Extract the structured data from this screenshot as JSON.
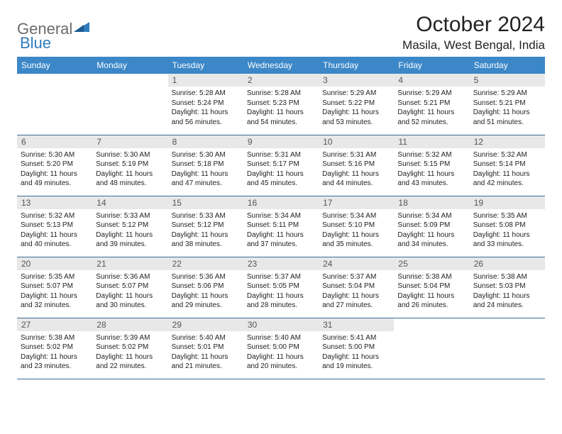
{
  "logo": {
    "part1": "General",
    "part2": "Blue"
  },
  "title": "October 2024",
  "location": "Masila, West Bengal, India",
  "colors": {
    "header_bg": "#3b87c8",
    "header_text": "#ffffff",
    "daynum_bg": "#e8e8e8",
    "border": "#3b6b95",
    "logo_gray": "#6b6b6b",
    "logo_blue": "#2f7bbf"
  },
  "day_headers": [
    "Sunday",
    "Monday",
    "Tuesday",
    "Wednesday",
    "Thursday",
    "Friday",
    "Saturday"
  ],
  "weeks": [
    [
      {
        "n": "",
        "sr": "",
        "ss": "",
        "dl": ""
      },
      {
        "n": "",
        "sr": "",
        "ss": "",
        "dl": ""
      },
      {
        "n": "1",
        "sr": "Sunrise: 5:28 AM",
        "ss": "Sunset: 5:24 PM",
        "dl": "Daylight: 11 hours and 56 minutes."
      },
      {
        "n": "2",
        "sr": "Sunrise: 5:28 AM",
        "ss": "Sunset: 5:23 PM",
        "dl": "Daylight: 11 hours and 54 minutes."
      },
      {
        "n": "3",
        "sr": "Sunrise: 5:29 AM",
        "ss": "Sunset: 5:22 PM",
        "dl": "Daylight: 11 hours and 53 minutes."
      },
      {
        "n": "4",
        "sr": "Sunrise: 5:29 AM",
        "ss": "Sunset: 5:21 PM",
        "dl": "Daylight: 11 hours and 52 minutes."
      },
      {
        "n": "5",
        "sr": "Sunrise: 5:29 AM",
        "ss": "Sunset: 5:21 PM",
        "dl": "Daylight: 11 hours and 51 minutes."
      }
    ],
    [
      {
        "n": "6",
        "sr": "Sunrise: 5:30 AM",
        "ss": "Sunset: 5:20 PM",
        "dl": "Daylight: 11 hours and 49 minutes."
      },
      {
        "n": "7",
        "sr": "Sunrise: 5:30 AM",
        "ss": "Sunset: 5:19 PM",
        "dl": "Daylight: 11 hours and 48 minutes."
      },
      {
        "n": "8",
        "sr": "Sunrise: 5:30 AM",
        "ss": "Sunset: 5:18 PM",
        "dl": "Daylight: 11 hours and 47 minutes."
      },
      {
        "n": "9",
        "sr": "Sunrise: 5:31 AM",
        "ss": "Sunset: 5:17 PM",
        "dl": "Daylight: 11 hours and 45 minutes."
      },
      {
        "n": "10",
        "sr": "Sunrise: 5:31 AM",
        "ss": "Sunset: 5:16 PM",
        "dl": "Daylight: 11 hours and 44 minutes."
      },
      {
        "n": "11",
        "sr": "Sunrise: 5:32 AM",
        "ss": "Sunset: 5:15 PM",
        "dl": "Daylight: 11 hours and 43 minutes."
      },
      {
        "n": "12",
        "sr": "Sunrise: 5:32 AM",
        "ss": "Sunset: 5:14 PM",
        "dl": "Daylight: 11 hours and 42 minutes."
      }
    ],
    [
      {
        "n": "13",
        "sr": "Sunrise: 5:32 AM",
        "ss": "Sunset: 5:13 PM",
        "dl": "Daylight: 11 hours and 40 minutes."
      },
      {
        "n": "14",
        "sr": "Sunrise: 5:33 AM",
        "ss": "Sunset: 5:12 PM",
        "dl": "Daylight: 11 hours and 39 minutes."
      },
      {
        "n": "15",
        "sr": "Sunrise: 5:33 AM",
        "ss": "Sunset: 5:12 PM",
        "dl": "Daylight: 11 hours and 38 minutes."
      },
      {
        "n": "16",
        "sr": "Sunrise: 5:34 AM",
        "ss": "Sunset: 5:11 PM",
        "dl": "Daylight: 11 hours and 37 minutes."
      },
      {
        "n": "17",
        "sr": "Sunrise: 5:34 AM",
        "ss": "Sunset: 5:10 PM",
        "dl": "Daylight: 11 hours and 35 minutes."
      },
      {
        "n": "18",
        "sr": "Sunrise: 5:34 AM",
        "ss": "Sunset: 5:09 PM",
        "dl": "Daylight: 11 hours and 34 minutes."
      },
      {
        "n": "19",
        "sr": "Sunrise: 5:35 AM",
        "ss": "Sunset: 5:08 PM",
        "dl": "Daylight: 11 hours and 33 minutes."
      }
    ],
    [
      {
        "n": "20",
        "sr": "Sunrise: 5:35 AM",
        "ss": "Sunset: 5:07 PM",
        "dl": "Daylight: 11 hours and 32 minutes."
      },
      {
        "n": "21",
        "sr": "Sunrise: 5:36 AM",
        "ss": "Sunset: 5:07 PM",
        "dl": "Daylight: 11 hours and 30 minutes."
      },
      {
        "n": "22",
        "sr": "Sunrise: 5:36 AM",
        "ss": "Sunset: 5:06 PM",
        "dl": "Daylight: 11 hours and 29 minutes."
      },
      {
        "n": "23",
        "sr": "Sunrise: 5:37 AM",
        "ss": "Sunset: 5:05 PM",
        "dl": "Daylight: 11 hours and 28 minutes."
      },
      {
        "n": "24",
        "sr": "Sunrise: 5:37 AM",
        "ss": "Sunset: 5:04 PM",
        "dl": "Daylight: 11 hours and 27 minutes."
      },
      {
        "n": "25",
        "sr": "Sunrise: 5:38 AM",
        "ss": "Sunset: 5:04 PM",
        "dl": "Daylight: 11 hours and 26 minutes."
      },
      {
        "n": "26",
        "sr": "Sunrise: 5:38 AM",
        "ss": "Sunset: 5:03 PM",
        "dl": "Daylight: 11 hours and 24 minutes."
      }
    ],
    [
      {
        "n": "27",
        "sr": "Sunrise: 5:38 AM",
        "ss": "Sunset: 5:02 PM",
        "dl": "Daylight: 11 hours and 23 minutes."
      },
      {
        "n": "28",
        "sr": "Sunrise: 5:39 AM",
        "ss": "Sunset: 5:02 PM",
        "dl": "Daylight: 11 hours and 22 minutes."
      },
      {
        "n": "29",
        "sr": "Sunrise: 5:40 AM",
        "ss": "Sunset: 5:01 PM",
        "dl": "Daylight: 11 hours and 21 minutes."
      },
      {
        "n": "30",
        "sr": "Sunrise: 5:40 AM",
        "ss": "Sunset: 5:00 PM",
        "dl": "Daylight: 11 hours and 20 minutes."
      },
      {
        "n": "31",
        "sr": "Sunrise: 5:41 AM",
        "ss": "Sunset: 5:00 PM",
        "dl": "Daylight: 11 hours and 19 minutes."
      },
      {
        "n": "",
        "sr": "",
        "ss": "",
        "dl": ""
      },
      {
        "n": "",
        "sr": "",
        "ss": "",
        "dl": ""
      }
    ]
  ]
}
